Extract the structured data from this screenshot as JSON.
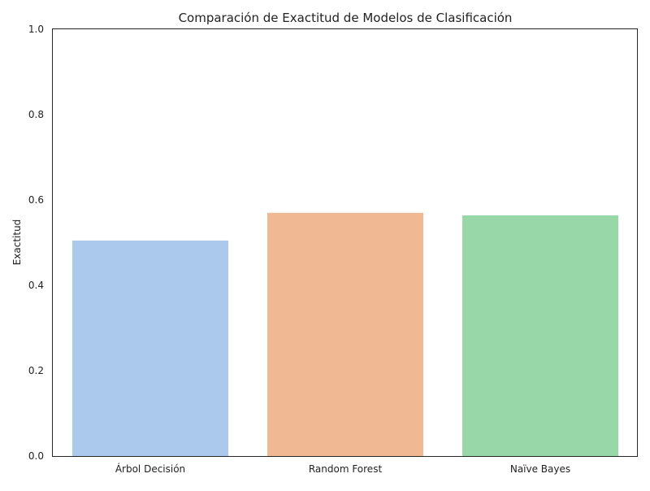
{
  "chart_data": {
    "type": "bar",
    "title": "Comparación de Exactitud de Modelos de Clasificación",
    "xlabel": "",
    "ylabel": "Exactitud",
    "categories": [
      "Árbol Decisión",
      "Random Forest",
      "Naïve Bayes"
    ],
    "values": [
      0.505,
      0.57,
      0.564
    ],
    "ylim": [
      0,
      1
    ],
    "yticks": [
      0.0,
      0.2,
      0.4,
      0.6,
      0.8,
      1.0
    ],
    "ytick_labels": [
      "0.0",
      "0.2",
      "0.4",
      "0.6",
      "0.8",
      "1.0"
    ],
    "colors": [
      "#abc9ed",
      "#f0b893",
      "#98d8a8"
    ],
    "grid": false,
    "legend": "none"
  }
}
